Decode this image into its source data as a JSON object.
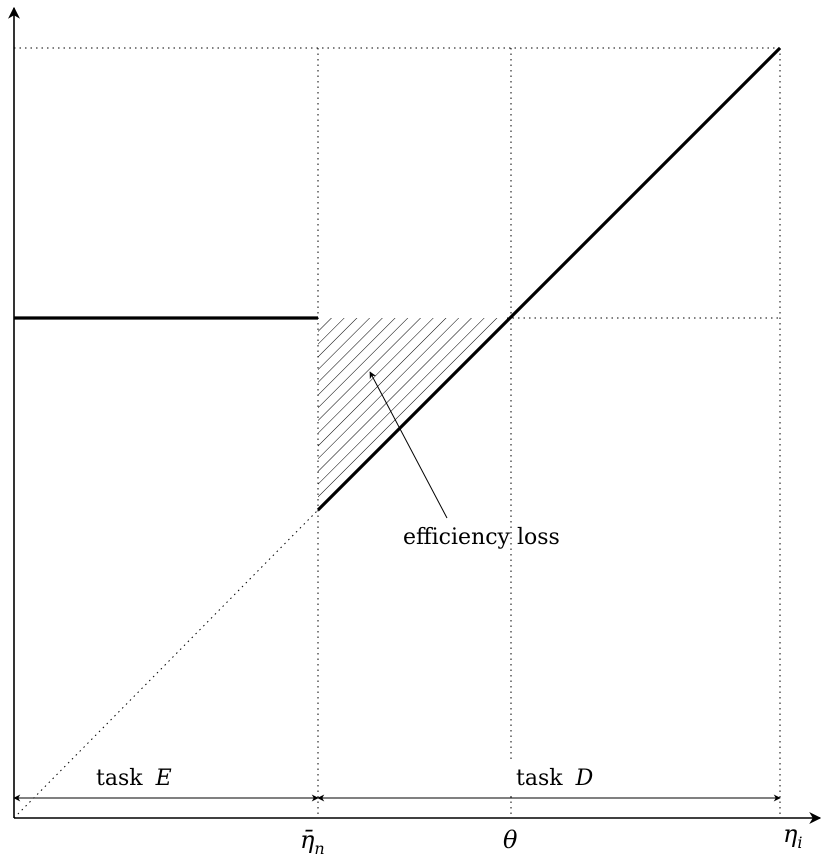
{
  "diagram": {
    "x_axis_label_main": "η",
    "x_axis_label_sub": "i",
    "tick_eta_bar_main": "η̄",
    "tick_eta_bar_sub": "n",
    "tick_theta": "θ",
    "annotation": "efficiency loss",
    "region_left_word": "task",
    "region_left_letter": "E",
    "region_right_word": "task",
    "region_right_letter": "D",
    "colors": {
      "line": "#000000",
      "background": "#ffffff"
    }
  }
}
